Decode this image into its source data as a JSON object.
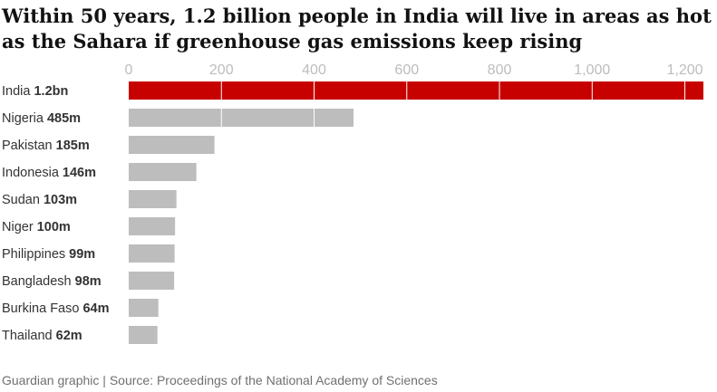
{
  "title": "Within 50 years, 1.2 billion people in India will live in areas as hot as the Sahara if greenhouse gas emissions keep rising",
  "source": "Guardian graphic | Source: Proceedings of the National Academy of Sciences",
  "colors": {
    "highlight": "#c70000",
    "bar": "#bdbdbd",
    "axis_text": "#bdbdbd",
    "label": "#333333",
    "gridline": "#ffffff"
  },
  "chart_data": {
    "type": "bar",
    "orientation": "horizontal",
    "unit": "millions of people",
    "xlim": [
      0,
      1240
    ],
    "ticks": [
      0,
      200,
      400,
      600,
      800,
      1000,
      1200
    ],
    "tick_labels": [
      "0",
      "200",
      "400",
      "600",
      "800",
      "1,000",
      "1,200"
    ],
    "categories": [
      "India",
      "Nigeria",
      "Pakistan",
      "Indonesia",
      "Sudan",
      "Niger",
      "Philippines",
      "Bangladesh",
      "Burkina Faso",
      "Thailand"
    ],
    "value_labels": [
      "1.2bn",
      "485m",
      "185m",
      "146m",
      "103m",
      "100m",
      "99m",
      "98m",
      "64m",
      "62m"
    ],
    "values": [
      1240,
      485,
      185,
      146,
      103,
      100,
      99,
      98,
      64,
      62
    ],
    "highlight": "India"
  }
}
